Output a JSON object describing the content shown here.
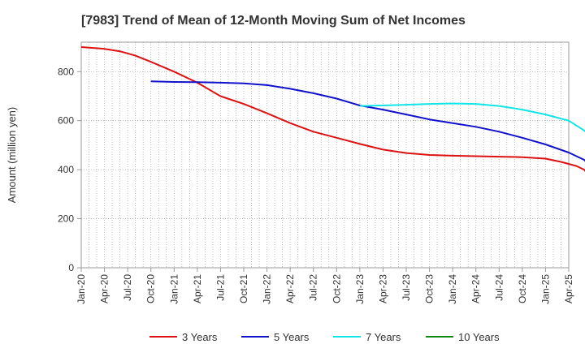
{
  "chart_data": {
    "type": "line",
    "title": "[7983]  Trend of Mean of 12-Month Moving Sum of Net Incomes",
    "xlabel": "",
    "ylabel": "Amount (million yen)",
    "ylim": [
      0,
      920
    ],
    "yticks": [
      0,
      200,
      400,
      600,
      800
    ],
    "x_tick_labels": [
      "Jan-20",
      "Apr-20",
      "Jul-20",
      "Oct-20",
      "Jan-21",
      "Apr-21",
      "Jul-21",
      "Oct-21",
      "Jan-22",
      "Apr-22",
      "Jul-22",
      "Oct-22",
      "Jan-23",
      "Apr-23",
      "Jul-23",
      "Oct-23",
      "Jan-24",
      "Apr-24",
      "Jul-24",
      "Oct-24",
      "Jan-25",
      "Apr-25"
    ],
    "x_range": [
      "Jan-20",
      "Apr-25"
    ],
    "grid": true,
    "legend_position": "bottom",
    "series": [
      {
        "name": "3 Years",
        "color": "#dd1111",
        "points": [
          [
            "Jan-20",
            900
          ],
          [
            "Apr-20",
            893
          ],
          [
            "Jun-20",
            883
          ],
          [
            "Aug-20",
            865
          ],
          [
            "Oct-20",
            840
          ],
          [
            "Jan-21",
            800
          ],
          [
            "Apr-21",
            755
          ],
          [
            "Jul-21",
            700
          ],
          [
            "Oct-21",
            668
          ],
          [
            "Jan-22",
            630
          ],
          [
            "Apr-22",
            590
          ],
          [
            "Jul-22",
            555
          ],
          [
            "Oct-22",
            530
          ],
          [
            "Jan-23",
            505
          ],
          [
            "Apr-23",
            482
          ],
          [
            "Jul-23",
            468
          ],
          [
            "Oct-23",
            460
          ],
          [
            "Jan-24",
            457
          ],
          [
            "Apr-24",
            455
          ],
          [
            "Jul-24",
            453
          ],
          [
            "Oct-24",
            451
          ],
          [
            "Jan-25",
            445
          ],
          [
            "Mar-25",
            432
          ],
          [
            "May-25",
            415
          ],
          [
            "Jun-25",
            400
          ],
          [
            "Jul-25",
            360
          ],
          [
            "Aug-25",
            300
          ],
          [
            "Oct-25",
            170
          ],
          [
            "Jan-26",
            15
          ]
        ]
      },
      {
        "name": "5 Years",
        "color": "#1111cc",
        "points": [
          [
            "Oct-20",
            760
          ],
          [
            "Jan-21",
            758
          ],
          [
            "Apr-21",
            757
          ],
          [
            "Jul-21",
            755
          ],
          [
            "Oct-21",
            752
          ],
          [
            "Jan-22",
            745
          ],
          [
            "Apr-22",
            730
          ],
          [
            "Jul-22",
            712
          ],
          [
            "Oct-22",
            690
          ],
          [
            "Jan-23",
            662
          ],
          [
            "Apr-23",
            645
          ],
          [
            "Jul-23",
            625
          ],
          [
            "Oct-23",
            605
          ],
          [
            "Jan-24",
            590
          ],
          [
            "Apr-24",
            575
          ],
          [
            "Jul-24",
            555
          ],
          [
            "Oct-24",
            530
          ],
          [
            "Jan-25",
            503
          ],
          [
            "Apr-25",
            470
          ],
          [
            "Jun-25",
            440
          ],
          [
            "Jul-25",
            405
          ],
          [
            "Sep-25",
            340
          ],
          [
            "Nov-25",
            270
          ],
          [
            "Jan-26",
            195
          ]
        ]
      },
      {
        "name": "7 Years",
        "color": "#11e5e5",
        "points": [
          [
            "Jan-23",
            660
          ],
          [
            "Apr-23",
            662
          ],
          [
            "Jul-23",
            665
          ],
          [
            "Oct-23",
            668
          ],
          [
            "Jan-24",
            670
          ],
          [
            "Apr-24",
            668
          ],
          [
            "Jul-24",
            660
          ],
          [
            "Oct-24",
            645
          ],
          [
            "Jan-25",
            625
          ],
          [
            "Apr-25",
            600
          ],
          [
            "Jun-25",
            560
          ],
          [
            "Aug-25",
            500
          ],
          [
            "Oct-25",
            440
          ],
          [
            "Jan-26",
            390
          ]
        ]
      },
      {
        "name": "10 Years",
        "color": "#118811",
        "points": []
      }
    ]
  }
}
